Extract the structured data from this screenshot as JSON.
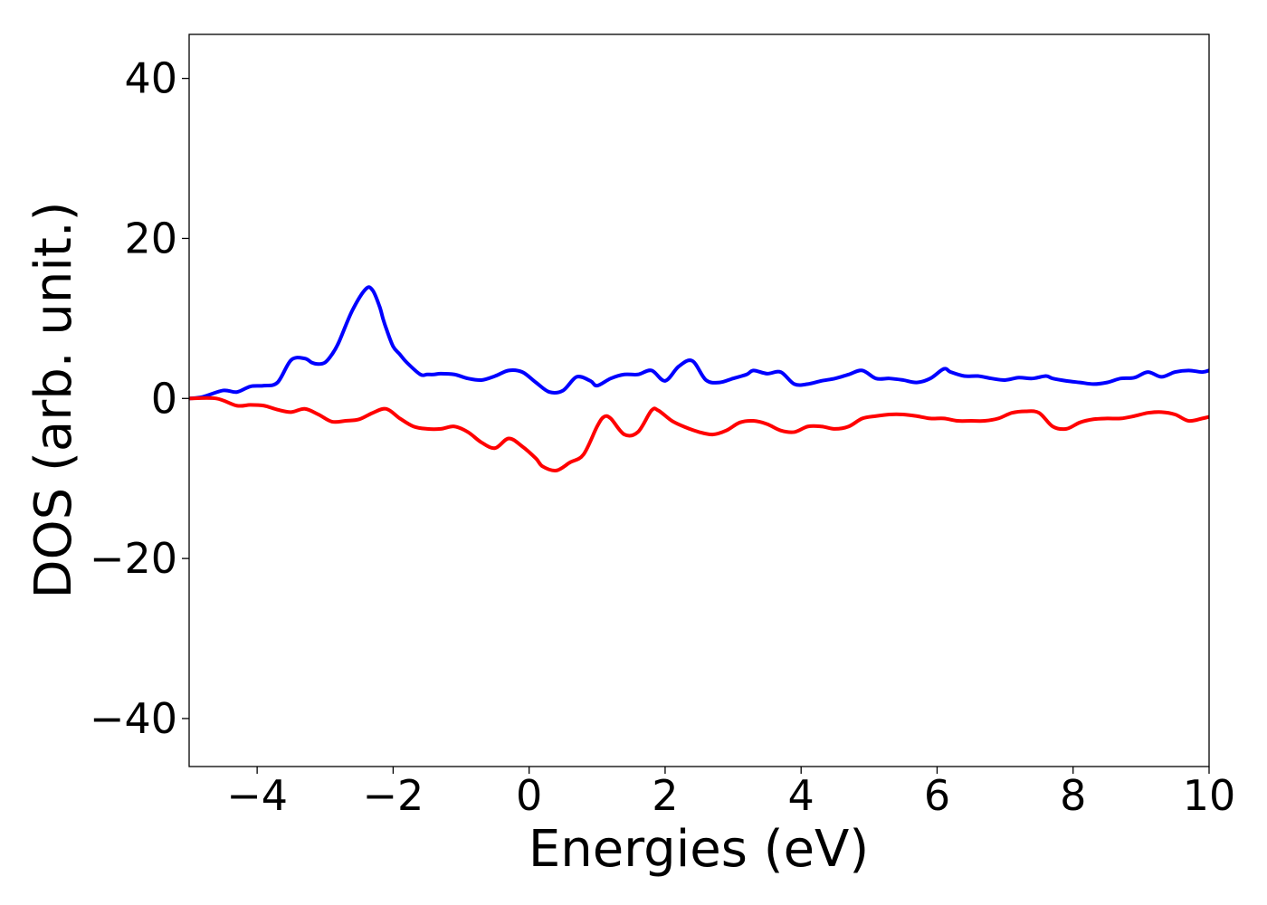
{
  "chart_data": {
    "type": "line",
    "title": "",
    "xlabel": "Energies (eV)",
    "ylabel": "DOS (arb. unit.)",
    "xlim": [
      -5,
      10
    ],
    "ylim": [
      -46,
      45.5
    ],
    "xticks": [
      -4,
      -2,
      0,
      2,
      4,
      6,
      8,
      10
    ],
    "xtick_labels": [
      "−4",
      "−2",
      "0",
      "2",
      "4",
      "6",
      "8",
      "10"
    ],
    "yticks": [
      40,
      20,
      0,
      -20,
      -40
    ],
    "ytick_labels": [
      "40",
      "20",
      "0",
      "−20",
      "−40"
    ],
    "grid": false,
    "legend": "none",
    "series": [
      {
        "color": "#0000ff",
        "x": [
          -5.0,
          -4.8,
          -4.5,
          -4.3,
          -4.1,
          -3.9,
          -3.7,
          -3.5,
          -3.3,
          -3.2,
          -3.1,
          -3.0,
          -2.9,
          -2.8,
          -2.6,
          -2.4,
          -2.3,
          -2.2,
          -2.15,
          -2.1,
          -2.0,
          -1.9,
          -1.8,
          -1.6,
          -1.5,
          -1.4,
          -1.3,
          -1.1,
          -0.9,
          -0.7,
          -0.5,
          -0.3,
          -0.1,
          0.1,
          0.3,
          0.5,
          0.7,
          0.9,
          1.0,
          1.2,
          1.4,
          1.6,
          1.8,
          2.0,
          2.2,
          2.4,
          2.6,
          2.8,
          3.0,
          3.2,
          3.3,
          3.5,
          3.7,
          3.9,
          4.1,
          4.3,
          4.5,
          4.7,
          4.9,
          5.1,
          5.3,
          5.5,
          5.7,
          5.9,
          6.1,
          6.2,
          6.4,
          6.6,
          6.8,
          7.0,
          7.2,
          7.4,
          7.6,
          7.7,
          7.9,
          8.1,
          8.3,
          8.5,
          8.7,
          8.9,
          9.1,
          9.3,
          9.5,
          9.7,
          9.9,
          10.0
        ],
        "y": [
          0.0,
          0.2,
          1.0,
          0.8,
          1.5,
          1.6,
          2.0,
          4.8,
          5.0,
          4.5,
          4.3,
          4.5,
          5.5,
          7.0,
          11.0,
          13.7,
          13.5,
          11.5,
          10.0,
          8.7,
          6.5,
          5.5,
          4.5,
          3.0,
          3.0,
          3.0,
          3.1,
          3.0,
          2.5,
          2.3,
          2.8,
          3.5,
          3.3,
          2.0,
          0.8,
          1.0,
          2.7,
          2.2,
          1.6,
          2.5,
          3.0,
          3.0,
          3.5,
          2.2,
          4.0,
          4.7,
          2.3,
          2.0,
          2.5,
          3.0,
          3.5,
          3.1,
          3.3,
          1.8,
          1.8,
          2.2,
          2.5,
          3.0,
          3.5,
          2.5,
          2.5,
          2.3,
          2.0,
          2.5,
          3.7,
          3.3,
          2.8,
          2.8,
          2.5,
          2.3,
          2.6,
          2.5,
          2.8,
          2.5,
          2.2,
          2.0,
          1.8,
          2.0,
          2.5,
          2.6,
          3.3,
          2.7,
          3.3,
          3.5,
          3.3,
          3.5
        ]
      },
      {
        "color": "#ff0000",
        "x": [
          -5.0,
          -4.6,
          -4.3,
          -4.1,
          -3.9,
          -3.7,
          -3.5,
          -3.3,
          -3.1,
          -2.9,
          -2.7,
          -2.5,
          -2.3,
          -2.1,
          -1.9,
          -1.7,
          -1.5,
          -1.3,
          -1.1,
          -0.9,
          -0.7,
          -0.5,
          -0.3,
          -0.1,
          0.1,
          0.2,
          0.4,
          0.6,
          0.8,
          1.0,
          1.1,
          1.2,
          1.4,
          1.6,
          1.8,
          1.9,
          2.1,
          2.3,
          2.5,
          2.7,
          2.9,
          3.1,
          3.3,
          3.5,
          3.7,
          3.9,
          4.1,
          4.3,
          4.5,
          4.7,
          4.9,
          5.1,
          5.3,
          5.5,
          5.7,
          5.9,
          6.1,
          6.3,
          6.5,
          6.7,
          6.9,
          7.1,
          7.3,
          7.5,
          7.7,
          7.9,
          8.1,
          8.3,
          8.5,
          8.7,
          8.9,
          9.1,
          9.3,
          9.5,
          9.7,
          9.9,
          10.0
        ],
        "y": [
          0.0,
          0.0,
          -0.9,
          -0.8,
          -0.9,
          -1.4,
          -1.7,
          -1.3,
          -2.0,
          -2.9,
          -2.8,
          -2.6,
          -1.8,
          -1.3,
          -2.5,
          -3.5,
          -3.8,
          -3.8,
          -3.5,
          -4.2,
          -5.5,
          -6.2,
          -5.0,
          -6.0,
          -7.5,
          -8.5,
          -9.0,
          -8.0,
          -7.0,
          -3.5,
          -2.3,
          -2.5,
          -4.5,
          -4.2,
          -1.5,
          -1.5,
          -2.8,
          -3.6,
          -4.2,
          -4.5,
          -4.0,
          -3.0,
          -2.8,
          -3.2,
          -4.0,
          -4.2,
          -3.5,
          -3.5,
          -3.8,
          -3.5,
          -2.5,
          -2.2,
          -2.0,
          -2.0,
          -2.2,
          -2.5,
          -2.5,
          -2.8,
          -2.8,
          -2.8,
          -2.5,
          -1.8,
          -1.6,
          -1.8,
          -3.5,
          -3.8,
          -3.0,
          -2.6,
          -2.5,
          -2.5,
          -2.2,
          -1.8,
          -1.7,
          -2.0,
          -2.8,
          -2.5,
          -2.3
        ]
      }
    ]
  }
}
